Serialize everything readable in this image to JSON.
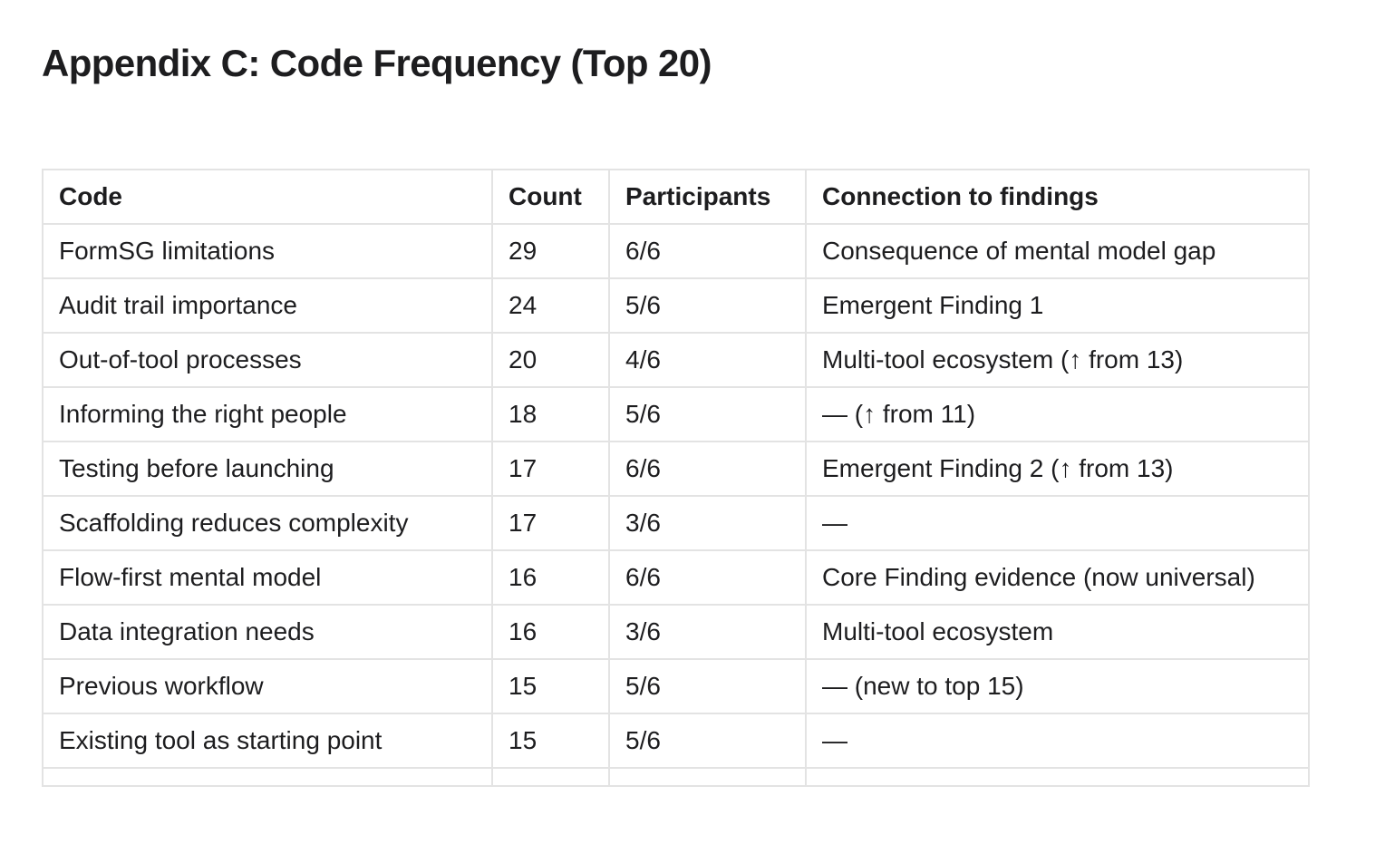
{
  "page": {
    "title": "Appendix C: Code Frequency (Top 20)"
  },
  "table": {
    "columns": [
      {
        "key": "code",
        "label": "Code"
      },
      {
        "key": "count",
        "label": "Count"
      },
      {
        "key": "participants",
        "label": "Participants"
      },
      {
        "key": "connection",
        "label": "Connection to findings"
      }
    ],
    "rows": [
      {
        "code": "FormSG limitations",
        "count": "29",
        "participants": "6/6",
        "connection": "Consequence of mental model gap"
      },
      {
        "code": "Audit trail importance",
        "count": "24",
        "participants": "5/6",
        "connection": "Emergent Finding 1"
      },
      {
        "code": "Out-of-tool processes",
        "count": "20",
        "participants": "4/6",
        "connection": "Multi-tool ecosystem (↑ from 13)"
      },
      {
        "code": "Informing the right people",
        "count": "18",
        "participants": "5/6",
        "connection": "— (↑ from 11)"
      },
      {
        "code": "Testing before launching",
        "count": "17",
        "participants": "6/6",
        "connection": "Emergent Finding 2 (↑ from 13)"
      },
      {
        "code": "Scaffolding reduces complexity",
        "count": "17",
        "participants": "3/6",
        "connection": "—"
      },
      {
        "code": "Flow-first mental model",
        "count": "16",
        "participants": "6/6",
        "connection": "Core Finding evidence (now universal)"
      },
      {
        "code": "Data integration needs",
        "count": "16",
        "participants": "3/6",
        "connection": "Multi-tool ecosystem"
      },
      {
        "code": "Previous workflow",
        "count": "15",
        "participants": "5/6",
        "connection": "— (new to top 15)"
      },
      {
        "code": "Existing tool as starting point",
        "count": "15",
        "participants": "5/6",
        "connection": "—"
      },
      {
        "code": "",
        "count": "",
        "participants": "",
        "connection": ""
      }
    ]
  },
  "colors": {
    "text": "#1d1d1f",
    "table_border": "#e3e3e3",
    "background": "#ffffff"
  }
}
